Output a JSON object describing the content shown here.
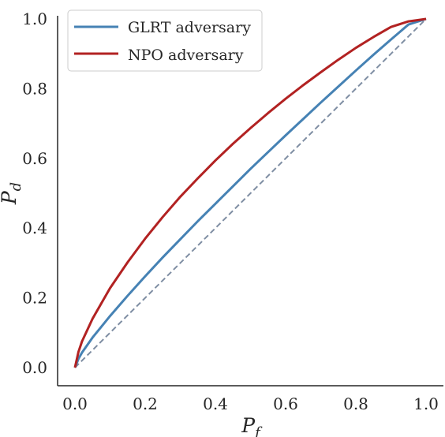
{
  "chart_data": {
    "type": "line",
    "xlabel": "P",
    "xlabel_sub": "f",
    "ylabel": "P",
    "ylabel_sub": "d",
    "xlim": [
      0.0,
      1.0
    ],
    "ylim": [
      0.0,
      1.0
    ],
    "x_ticks": [
      "0.0",
      "0.2",
      "0.4",
      "0.6",
      "0.8",
      "1.0"
    ],
    "y_ticks": [
      "0.0",
      "0.2",
      "0.4",
      "0.6",
      "0.8",
      "1.0"
    ],
    "grid": false,
    "legend_position": "top-left",
    "series": [
      {
        "name": "GLRT adversary",
        "color": "#4682b4",
        "x": [
          0.0,
          0.01,
          0.02,
          0.05,
          0.1,
          0.15,
          0.2,
          0.25,
          0.3,
          0.35,
          0.4,
          0.45,
          0.5,
          0.55,
          0.6,
          0.65,
          0.7,
          0.75,
          0.8,
          0.85,
          0.9,
          0.95,
          1.0
        ],
        "y": [
          0.0,
          0.025,
          0.043,
          0.086,
          0.148,
          0.206,
          0.262,
          0.316,
          0.368,
          0.42,
          0.47,
          0.52,
          0.57,
          0.618,
          0.666,
          0.713,
          0.76,
          0.806,
          0.852,
          0.897,
          0.941,
          0.984,
          1.0
        ]
      },
      {
        "name": "NPO adversary",
        "color": "#b22222",
        "x": [
          0.0,
          0.01,
          0.02,
          0.05,
          0.1,
          0.15,
          0.2,
          0.25,
          0.3,
          0.35,
          0.4,
          0.45,
          0.5,
          0.55,
          0.6,
          0.65,
          0.7,
          0.75,
          0.8,
          0.85,
          0.9,
          0.95,
          1.0
        ],
        "y": [
          0.0,
          0.045,
          0.075,
          0.14,
          0.228,
          0.302,
          0.37,
          0.432,
          0.49,
          0.543,
          0.594,
          0.642,
          0.687,
          0.73,
          0.771,
          0.81,
          0.847,
          0.883,
          0.917,
          0.948,
          0.977,
          0.993,
          1.0
        ]
      }
    ],
    "reference_line": {
      "x": [
        0.0,
        1.0
      ],
      "y": [
        0.0,
        1.0
      ],
      "color": "#7f8ea3",
      "style": "dashed"
    }
  }
}
